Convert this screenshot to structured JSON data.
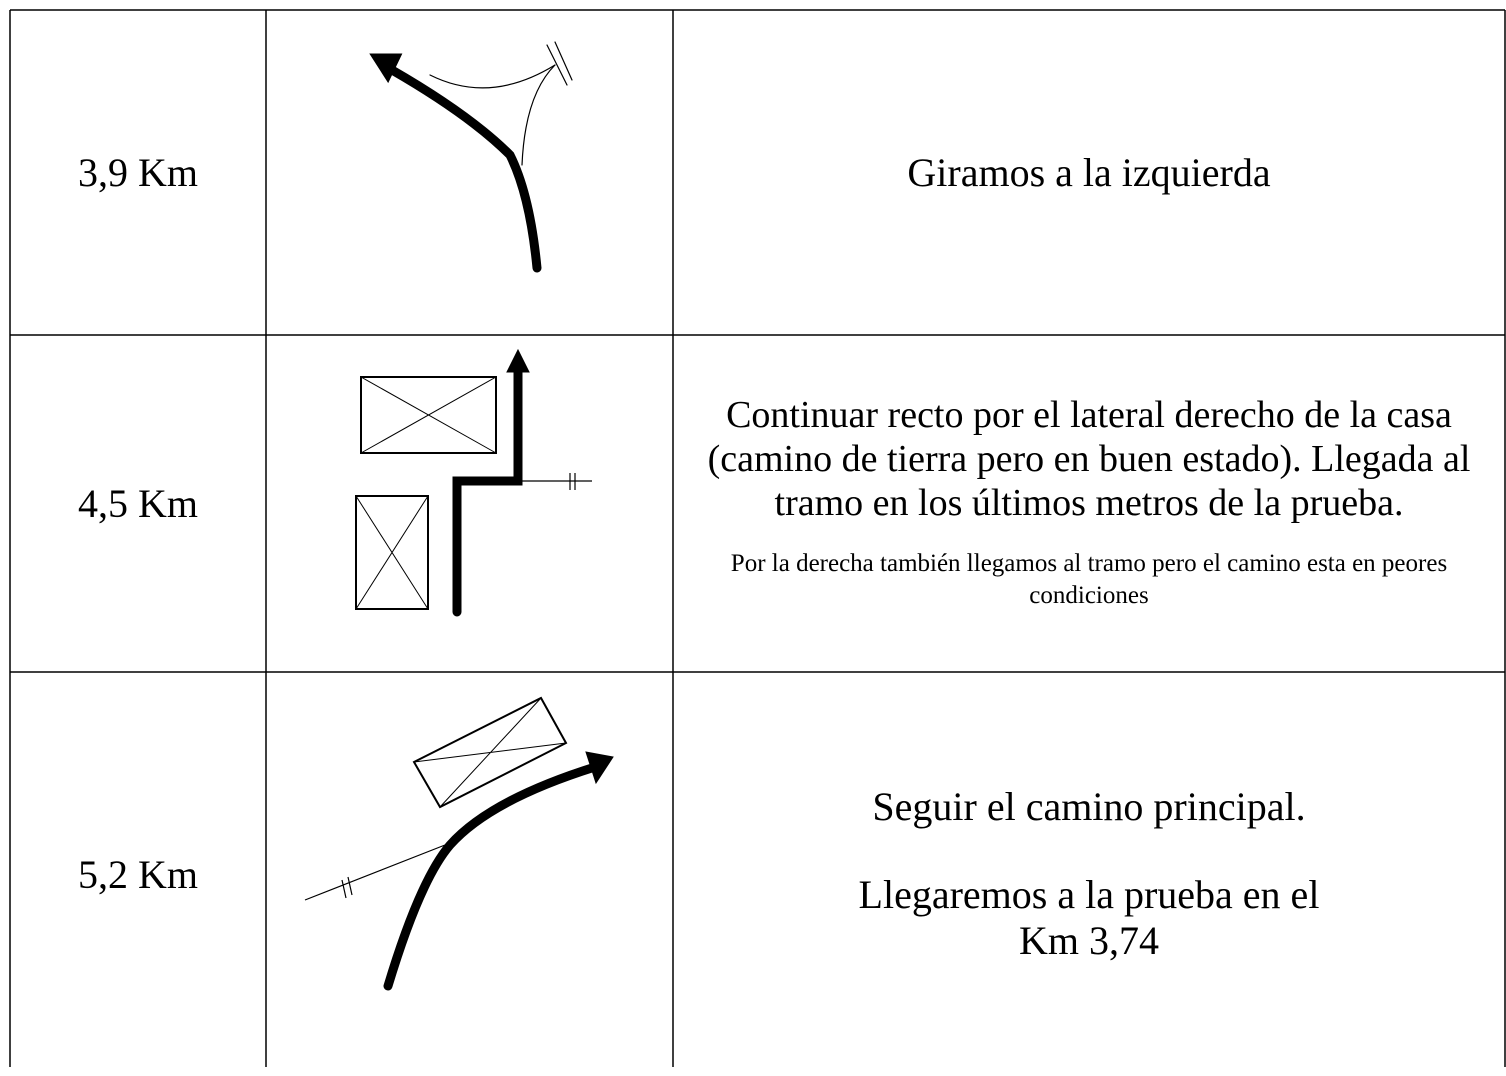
{
  "table": {
    "rows": [
      {
        "distance": "3,9 Km",
        "instructions": [
          "Giramos a la izquierda"
        ]
      },
      {
        "distance": "4,5 Km",
        "instructions": [
          "Continuar recto por el lateral derecho de la casa (camino de tierra pero en buen estado). Llegada al tramo en los últimos metros de la prueba.",
          "Por la derecha también llegamos al tramo pero el camino esta en peores condiciones"
        ]
      },
      {
        "distance": "5,2 Km",
        "instructions": [
          "Seguir el camino principal.",
          "Llegaremos a la prueba en el Km 3,74"
        ]
      }
    ]
  }
}
